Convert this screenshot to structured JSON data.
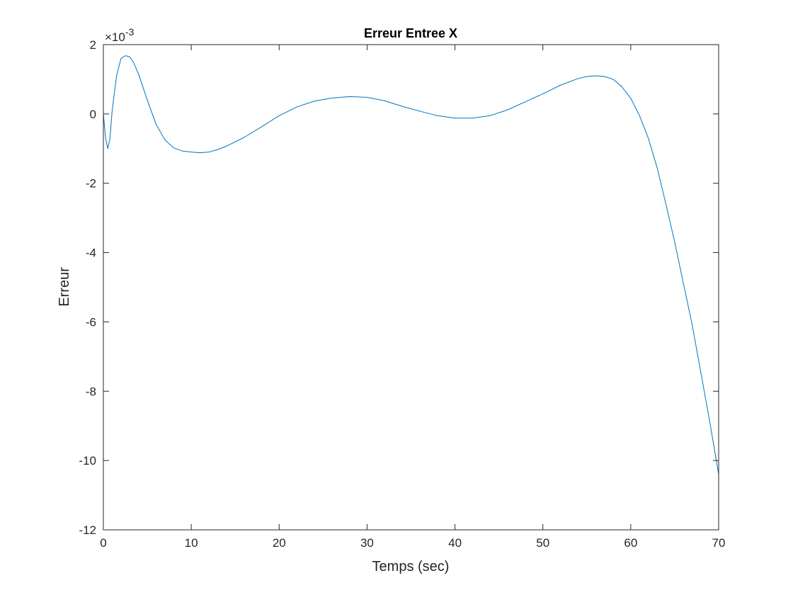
{
  "chart_data": {
    "type": "line",
    "title": "Erreur Entree X",
    "xlabel": "Temps (sec)",
    "ylabel": "Erreur",
    "y_exponent_label": "×10",
    "y_exponent_power": "-3",
    "xlim": [
      0,
      70
    ],
    "ylim": [
      -12,
      2
    ],
    "x_ticks": [
      0,
      10,
      20,
      30,
      40,
      50,
      60,
      70
    ],
    "y_ticks": [
      2,
      0,
      -2,
      -4,
      -6,
      -8,
      -10,
      -12
    ],
    "x_tick_labels": [
      "0",
      "10",
      "20",
      "30",
      "40",
      "50",
      "60",
      "70"
    ],
    "y_tick_labels": [
      "2",
      "0",
      "-2",
      "-4",
      "-6",
      "-8",
      "-10",
      "-12"
    ],
    "grid": false,
    "box": true,
    "series": [
      {
        "color": "#0072BD",
        "x": [
          0,
          0.25,
          0.5,
          0.75,
          1.0,
          1.5,
          2.0,
          2.5,
          3.0,
          3.5,
          4.0,
          5.0,
          6.0,
          7.0,
          8.0,
          9.0,
          10.0,
          11.0,
          12.0,
          13.0,
          14.0,
          16.0,
          18.0,
          20.0,
          22.0,
          24.0,
          26.0,
          28.0,
          30.0,
          32.0,
          34.0,
          36.0,
          38.0,
          40.0,
          42.0,
          44.0,
          46.0,
          48.0,
          50.0,
          52.0,
          54.0,
          55.0,
          56.0,
          57.0,
          58.0,
          59.0,
          60.0,
          61.0,
          62.0,
          63.0,
          64.0,
          65.0,
          66.0,
          67.0,
          68.0,
          69.0,
          70.0
        ],
        "y": [
          0.0,
          -0.7,
          -1.0,
          -0.7,
          0.1,
          1.1,
          1.6,
          1.68,
          1.65,
          1.45,
          1.15,
          0.4,
          -0.3,
          -0.75,
          -0.98,
          -1.07,
          -1.1,
          -1.12,
          -1.1,
          -1.03,
          -0.93,
          -0.68,
          -0.37,
          -0.05,
          0.2,
          0.37,
          0.46,
          0.5,
          0.48,
          0.38,
          0.22,
          0.08,
          -0.05,
          -0.12,
          -0.12,
          -0.05,
          0.12,
          0.35,
          0.58,
          0.83,
          1.02,
          1.08,
          1.1,
          1.08,
          1.0,
          0.78,
          0.45,
          -0.05,
          -0.7,
          -1.55,
          -2.6,
          -3.7,
          -4.9,
          -6.1,
          -7.5,
          -8.9,
          -10.4
        ]
      }
    ]
  }
}
